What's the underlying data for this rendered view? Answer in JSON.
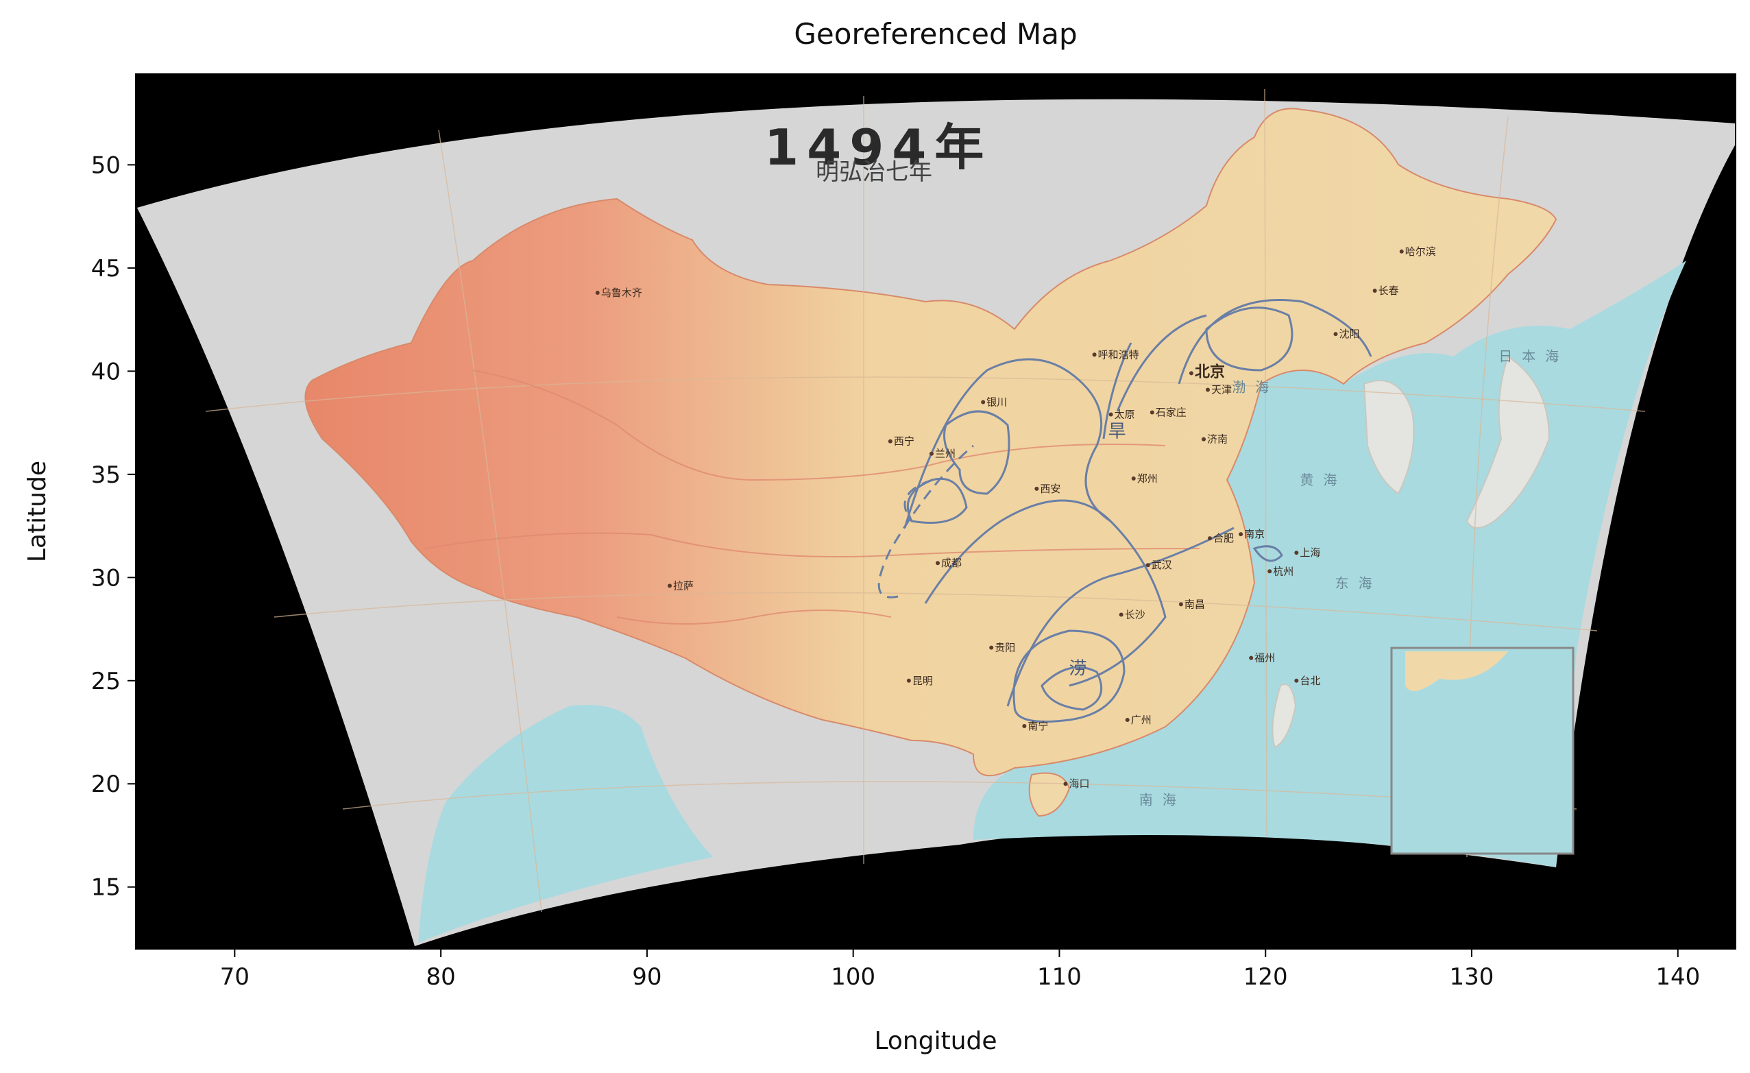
{
  "figure": {
    "title": "Georeferenced Map",
    "xlabel": "Longitude",
    "ylabel": "Latitude"
  },
  "axes": {
    "xlim": [
      65.2,
      142.8
    ],
    "ylim": [
      12.0,
      54.4
    ],
    "xticks": [
      70,
      80,
      90,
      100,
      110,
      120,
      130,
      140
    ],
    "yticks": [
      15,
      20,
      25,
      30,
      35,
      40,
      45,
      50
    ],
    "background": "#000000"
  },
  "map_image": {
    "year_title": "1494年",
    "dynasty_subtitle": "明弘治七年",
    "colors": {
      "paper": "#d6d6d6",
      "land_east": "#efd4a0",
      "land_west": "#e89478",
      "sea": "#a9dae0",
      "rivers": "#e08a70",
      "contours": "#6a7fa6"
    },
    "cities": [
      {
        "name": "乌鲁木齐",
        "lon": 87.6,
        "lat": 43.8
      },
      {
        "name": "拉萨",
        "lon": 91.1,
        "lat": 29.6
      },
      {
        "name": "西宁",
        "lon": 101.8,
        "lat": 36.6
      },
      {
        "name": "银川",
        "lon": 106.3,
        "lat": 38.5
      },
      {
        "name": "兰州",
        "lon": 103.8,
        "lat": 36.0
      },
      {
        "name": "呼和浩特",
        "lon": 111.7,
        "lat": 40.8
      },
      {
        "name": "北京",
        "lon": 116.4,
        "lat": 39.9
      },
      {
        "name": "天津",
        "lon": 117.2,
        "lat": 39.1
      },
      {
        "name": "石家庄",
        "lon": 114.5,
        "lat": 38.0
      },
      {
        "name": "太原",
        "lon": 112.5,
        "lat": 37.9
      },
      {
        "name": "济南",
        "lon": 117.0,
        "lat": 36.7
      },
      {
        "name": "郑州",
        "lon": 113.6,
        "lat": 34.8
      },
      {
        "name": "西安",
        "lon": 108.9,
        "lat": 34.3
      },
      {
        "name": "合肥",
        "lon": 117.3,
        "lat": 31.9
      },
      {
        "name": "南京",
        "lon": 118.8,
        "lat": 32.1
      },
      {
        "name": "上海",
        "lon": 121.5,
        "lat": 31.2
      },
      {
        "name": "武汉",
        "lon": 114.3,
        "lat": 30.6
      },
      {
        "name": "杭州",
        "lon": 120.2,
        "lat": 30.3
      },
      {
        "name": "成都",
        "lon": 104.1,
        "lat": 30.7
      },
      {
        "name": "长沙",
        "lon": 113.0,
        "lat": 28.2
      },
      {
        "name": "南昌",
        "lon": 115.9,
        "lat": 28.7
      },
      {
        "name": "福州",
        "lon": 119.3,
        "lat": 26.1
      },
      {
        "name": "贵阳",
        "lon": 106.7,
        "lat": 26.6
      },
      {
        "name": "昆明",
        "lon": 102.7,
        "lat": 25.0
      },
      {
        "name": "南宁",
        "lon": 108.3,
        "lat": 22.8
      },
      {
        "name": "广州",
        "lon": 113.3,
        "lat": 23.1
      },
      {
        "name": "台北",
        "lon": 121.5,
        "lat": 25.0
      },
      {
        "name": "海口",
        "lon": 110.3,
        "lat": 20.0
      },
      {
        "name": "哈尔滨",
        "lon": 126.6,
        "lat": 45.8
      },
      {
        "name": "长春",
        "lon": 125.3,
        "lat": 43.9
      },
      {
        "name": "沈阳",
        "lon": 123.4,
        "lat": 41.8
      }
    ],
    "annotations": [
      {
        "text": "旱",
        "lon": 112.8,
        "lat": 36.8
      },
      {
        "text": "涝",
        "lon": 110.9,
        "lat": 25.3
      },
      {
        "text": "渤海",
        "lon": 119.5,
        "lat": 39.0
      },
      {
        "text": "黄海",
        "lon": 122.8,
        "lat": 34.5
      },
      {
        "text": "东海",
        "lon": 124.5,
        "lat": 29.5
      },
      {
        "text": "南海",
        "lon": 115.0,
        "lat": 19.0
      },
      {
        "text": "日本海",
        "lon": 133.0,
        "lat": 40.5
      }
    ]
  }
}
